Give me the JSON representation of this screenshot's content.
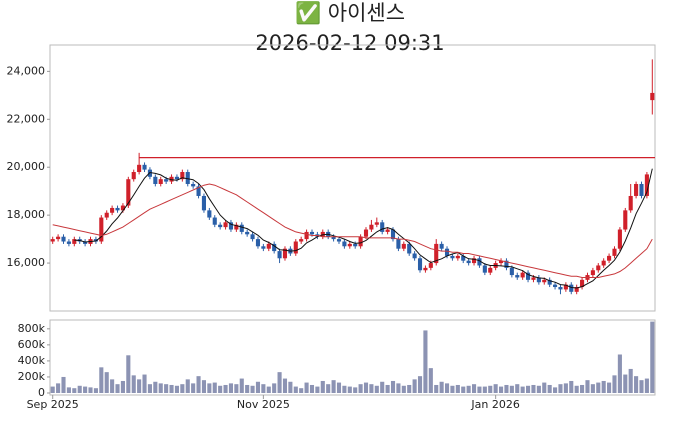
{
  "chart_data": {
    "type": "candlestick",
    "title": "✅ 아이센스",
    "subtitle": "2026-02-12 09:31",
    "up_color": "#d0202a",
    "down_color": "#2a5fa8",
    "open": [
      16900,
      17000,
      17100,
      16900,
      16800,
      17000,
      16900,
      16800,
      17000,
      16900,
      17900,
      18100,
      18300,
      18200,
      18400,
      19500,
      19800,
      20100,
      19900,
      19600,
      19300,
      19500,
      19400,
      19600,
      19500,
      19800,
      19300,
      19200,
      18800,
      18200,
      17900,
      17600,
      17500,
      17700,
      17400,
      17600,
      17300,
      17200,
      17000,
      16700,
      16600,
      16800,
      16500,
      16200,
      16600,
      16400,
      16900,
      17000,
      17300,
      17200,
      17100,
      17300,
      17100,
      17000,
      16900,
      16700,
      16800,
      16700,
      17100,
      17400,
      17600,
      17700,
      17300,
      17400,
      17000,
      16600,
      16800,
      16400,
      16200,
      15700,
      15800,
      16000,
      16800,
      16600,
      16300,
      16200,
      16300,
      16100,
      16000,
      16200,
      15900,
      15600,
      15800,
      16000,
      16100,
      15800,
      15500,
      15400,
      15600,
      15300,
      15400,
      15200,
      15300,
      15100,
      15000,
      14900,
      15100,
      14800,
      15000,
      15300,
      15500,
      15700,
      15900,
      16100,
      16300,
      16600,
      17400,
      18200,
      18800,
      19300,
      18800,
      22800
    ],
    "high": [
      17100,
      17200,
      17200,
      17000,
      17100,
      17100,
      17000,
      17100,
      17100,
      18000,
      18200,
      18400,
      18400,
      18500,
      19600,
      19900,
      20600,
      20200,
      20000,
      19700,
      19600,
      19600,
      19700,
      19700,
      19900,
      19900,
      19400,
      19300,
      18900,
      18300,
      18000,
      17700,
      17800,
      17800,
      17700,
      17700,
      17400,
      17300,
      17100,
      16800,
      16900,
      16900,
      16600,
      16700,
      16700,
      17000,
      17100,
      17400,
      17400,
      17300,
      17400,
      17400,
      17200,
      17100,
      17000,
      16900,
      16900,
      17200,
      17500,
      17800,
      17900,
      17800,
      17500,
      17500,
      17100,
      16900,
      16900,
      16500,
      16300,
      15900,
      16100,
      17000,
      16900,
      16700,
      16400,
      16400,
      16400,
      16200,
      16300,
      16300,
      16000,
      15900,
      16100,
      16200,
      16200,
      15900,
      15600,
      15700,
      15700,
      15500,
      15500,
      15400,
      15400,
      15200,
      15100,
      15200,
      15200,
      15100,
      15400,
      15600,
      15800,
      16000,
      16200,
      16400,
      16700,
      17500,
      18300,
      19300,
      19400,
      19400,
      19800,
      24500
    ],
    "low": [
      16800,
      16900,
      16800,
      16700,
      16700,
      16800,
      16700,
      16700,
      16800,
      16800,
      17800,
      18000,
      18100,
      18100,
      18300,
      19400,
      19700,
      19800,
      19500,
      19200,
      19200,
      19300,
      19300,
      19400,
      19400,
      19200,
      19100,
      18700,
      18100,
      17800,
      17500,
      17400,
      17400,
      17300,
      17300,
      17200,
      17100,
      16900,
      16600,
      16500,
      16500,
      16400,
      16000,
      16100,
      16300,
      16300,
      16800,
      16900,
      17100,
      17000,
      17000,
      17000,
      16900,
      16800,
      16600,
      16600,
      16600,
      16600,
      17000,
      17300,
      17500,
      17200,
      17200,
      16900,
      16500,
      16500,
      16300,
      16100,
      15600,
      15600,
      15700,
      15900,
      16500,
      16200,
      16100,
      16100,
      16000,
      15900,
      15900,
      15800,
      15500,
      15500,
      15700,
      15900,
      15700,
      15400,
      15300,
      15300,
      15200,
      15200,
      15100,
      15100,
      15000,
      14900,
      14700,
      14800,
      14700,
      14700,
      14900,
      15200,
      15400,
      15600,
      15800,
      16000,
      16200,
      16500,
      17300,
      18100,
      18700,
      18700,
      18700,
      22200
    ],
    "close": [
      17000,
      17100,
      16900,
      16800,
      17000,
      16900,
      16800,
      17000,
      16900,
      17900,
      18100,
      18300,
      18200,
      18400,
      19500,
      19800,
      20100,
      19900,
      19600,
      19300,
      19500,
      19400,
      19600,
      19500,
      19800,
      19300,
      19200,
      18800,
      18200,
      17900,
      17600,
      17500,
      17700,
      17400,
      17600,
      17300,
      17200,
      17000,
      16700,
      16600,
      16800,
      16500,
      16200,
      16600,
      16400,
      16900,
      17000,
      17300,
      17200,
      17100,
      17300,
      17100,
      17000,
      16900,
      16700,
      16800,
      16700,
      17100,
      17400,
      17600,
      17700,
      17300,
      17400,
      17000,
      16600,
      16800,
      16400,
      16200,
      15700,
      15800,
      16000,
      16800,
      16600,
      16300,
      16200,
      16300,
      16100,
      16000,
      16200,
      15900,
      15600,
      15800,
      16000,
      16100,
      15800,
      15500,
      15400,
      15600,
      15300,
      15400,
      15200,
      15300,
      15100,
      15000,
      14900,
      15100,
      14800,
      15000,
      15300,
      15500,
      15700,
      15900,
      16100,
      16300,
      16600,
      17400,
      18200,
      18800,
      19300,
      18800,
      19700,
      23100
    ],
    "moving_averages": [
      {
        "color": "#111111",
        "values": [
          null,
          null,
          null,
          null,
          16960,
          16940,
          16880,
          16900,
          16920,
          17100,
          17340,
          17640,
          17880,
          18180,
          18500,
          18840,
          19200,
          19540,
          19780,
          19740,
          19680,
          19540,
          19480,
          19460,
          19560,
          19520,
          19480,
          19320,
          19060,
          18680,
          18340,
          18000,
          17780,
          17620,
          17560,
          17500,
          17440,
          17300,
          17160,
          16960,
          16860,
          16720,
          16560,
          16540,
          16500,
          16520,
          16620,
          16840,
          16960,
          17100,
          17180,
          17200,
          17140,
          17080,
          17000,
          16900,
          16820,
          16840,
          16940,
          17120,
          17300,
          17420,
          17480,
          17400,
          17200,
          17020,
          16840,
          16600,
          16340,
          16180,
          16020,
          16100,
          16180,
          16300,
          16380,
          16440,
          16300,
          16180,
          16160,
          16100,
          15960,
          15900,
          15900,
          15880,
          15860,
          15840,
          15760,
          15680,
          15520,
          15440,
          15380,
          15360,
          15260,
          15200,
          15100,
          15080,
          14980,
          14960,
          15020,
          15140,
          15260,
          15480,
          15700,
          15900,
          16120,
          16460,
          16920,
          17460,
          18060,
          18500,
          18960,
          19940
        ]
      },
      {
        "color": "#c8383c",
        "values": [
          17600,
          17550,
          17500,
          17450,
          17400,
          17350,
          17300,
          17250,
          17200,
          17150,
          17200,
          17300,
          17400,
          17500,
          17650,
          17800,
          17950,
          18100,
          18250,
          18350,
          18450,
          18550,
          18650,
          18750,
          18850,
          18950,
          19050,
          19150,
          19250,
          19300,
          19250,
          19150,
          19050,
          18950,
          18850,
          18700,
          18550,
          18400,
          18250,
          18100,
          17950,
          17800,
          17650,
          17500,
          17400,
          17300,
          17250,
          17200,
          17150,
          17150,
          17100,
          17100,
          17100,
          17100,
          17100,
          17100,
          17100,
          17100,
          17050,
          17050,
          17050,
          17050,
          17050,
          17050,
          17000,
          17000,
          16950,
          16900,
          16800,
          16700,
          16600,
          16550,
          16500,
          16500,
          16450,
          16450,
          16400,
          16400,
          16350,
          16300,
          16250,
          16200,
          16150,
          16100,
          16050,
          16000,
          15950,
          15900,
          15850,
          15800,
          15750,
          15700,
          15650,
          15600,
          15550,
          15500,
          15450,
          15450,
          15400,
          15400,
          15400,
          15400,
          15450,
          15500,
          15550,
          15650,
          15800,
          16000,
          16200,
          16400,
          16600,
          17000
        ]
      }
    ],
    "hline": {
      "value": 20400,
      "color": "#d0202a"
    },
    "ylim": [
      14000,
      25100
    ],
    "yticks": [
      {
        "value": 16000,
        "label": "16,000"
      },
      {
        "value": 18000,
        "label": "18,000"
      },
      {
        "value": 20000,
        "label": "20,000"
      },
      {
        "value": 22000,
        "label": "22,000"
      },
      {
        "value": 24000,
        "label": "24,000"
      }
    ],
    "xticks": [
      {
        "value": 0,
        "label": "Sep 2025"
      },
      {
        "value": 39,
        "label": "Nov 2025"
      },
      {
        "value": 82,
        "label": "Jan 2026"
      }
    ],
    "volume": {
      "color": "#8c93b3",
      "values": [
        80000,
        120000,
        200000,
        70000,
        60000,
        90000,
        80000,
        70000,
        60000,
        320000,
        260000,
        170000,
        110000,
        150000,
        470000,
        220000,
        170000,
        230000,
        110000,
        140000,
        120000,
        110000,
        100000,
        90000,
        110000,
        170000,
        120000,
        210000,
        160000,
        120000,
        130000,
        90000,
        100000,
        120000,
        110000,
        180000,
        100000,
        90000,
        140000,
        110000,
        80000,
        120000,
        260000,
        180000,
        140000,
        80000,
        60000,
        130000,
        100000,
        80000,
        150000,
        110000,
        160000,
        130000,
        90000,
        80000,
        70000,
        110000,
        130000,
        110000,
        90000,
        140000,
        100000,
        150000,
        120000,
        90000,
        100000,
        170000,
        210000,
        780000,
        310000,
        100000,
        140000,
        120000,
        90000,
        100000,
        80000,
        90000,
        110000,
        80000,
        80000,
        90000,
        110000,
        80000,
        100000,
        90000,
        110000,
        80000,
        90000,
        100000,
        90000,
        130000,
        100000,
        70000,
        110000,
        120000,
        150000,
        90000,
        100000,
        160000,
        110000,
        130000,
        150000,
        130000,
        220000,
        480000,
        230000,
        300000,
        210000,
        160000,
        180000,
        890000
      ],
      "ylim": [
        0,
        910000
      ],
      "yticks": [
        0,
        {
          "value": 200000,
          "label": "200k"
        },
        {
          "value": 400000,
          "label": "400k"
        },
        {
          "value": 600000,
          "label": "600k"
        },
        {
          "value": 800000,
          "label": "800k"
        }
      ]
    }
  }
}
